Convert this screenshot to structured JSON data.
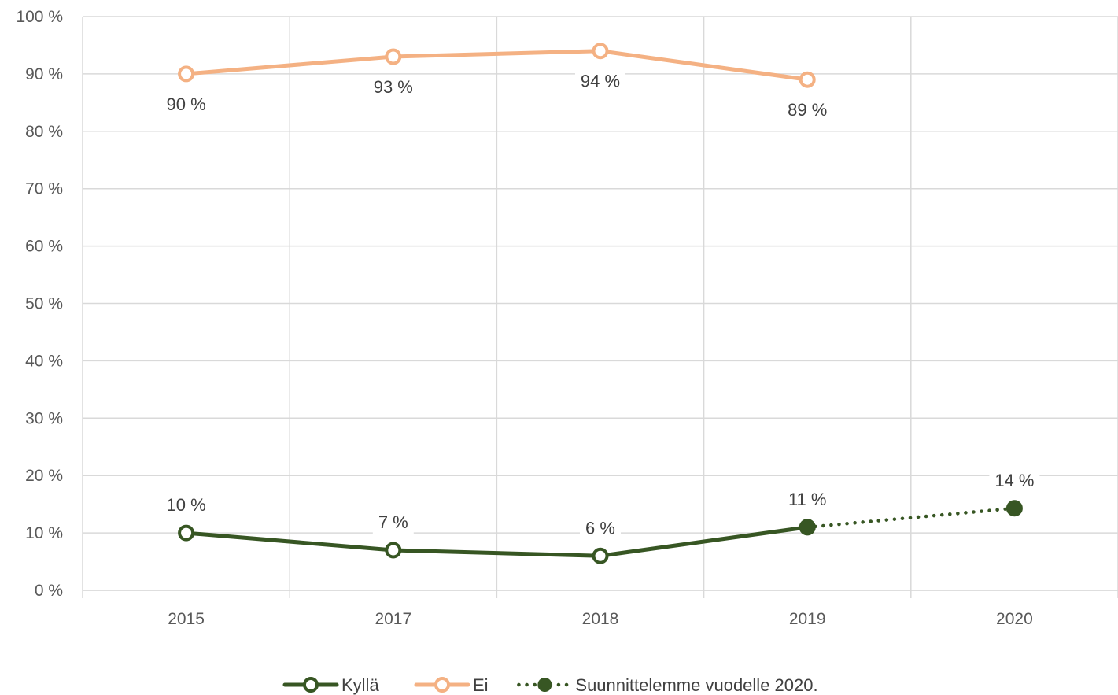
{
  "chart_data": {
    "type": "line",
    "categories": [
      "2015",
      "2017",
      "2018",
      "2019",
      "2020"
    ],
    "y_tick_labels": [
      "0 %",
      "10 %",
      "20 %",
      "30 %",
      "40 %",
      "50 %",
      "60 %",
      "70 %",
      "80 %",
      "90 %",
      "100 %"
    ],
    "ylim": [
      0,
      100
    ],
    "grid": true,
    "legend_position": "bottom",
    "series": [
      {
        "key": "kylla",
        "name": "Kyllä",
        "color": "#375623",
        "style": "solid",
        "marker": "hollow-circle",
        "x": [
          "2015",
          "2017",
          "2018",
          "2019"
        ],
        "values": [
          10,
          7,
          6,
          11
        ],
        "labels": [
          "10 %",
          "7 %",
          "6 %",
          "11 %"
        ],
        "label_position": "above"
      },
      {
        "key": "ei",
        "name": "Ei",
        "color": "#F4B183",
        "style": "solid",
        "marker": "hollow-circle",
        "x": [
          "2015",
          "2017",
          "2018",
          "2019"
        ],
        "values": [
          90,
          93,
          94,
          89
        ],
        "labels": [
          "90 %",
          "93 %",
          "94 %",
          "89 %"
        ],
        "label_position": "below-or-above"
      },
      {
        "key": "suunnittelemme",
        "name": "Suunnittelemme vuodelle 2020.",
        "color": "#375623",
        "style": "dotted",
        "marker": "filled-circle",
        "x": [
          "2019",
          "2020"
        ],
        "values": [
          11,
          14.3
        ],
        "labels": [
          "",
          "14 %"
        ],
        "label_position": "above"
      }
    ]
  }
}
